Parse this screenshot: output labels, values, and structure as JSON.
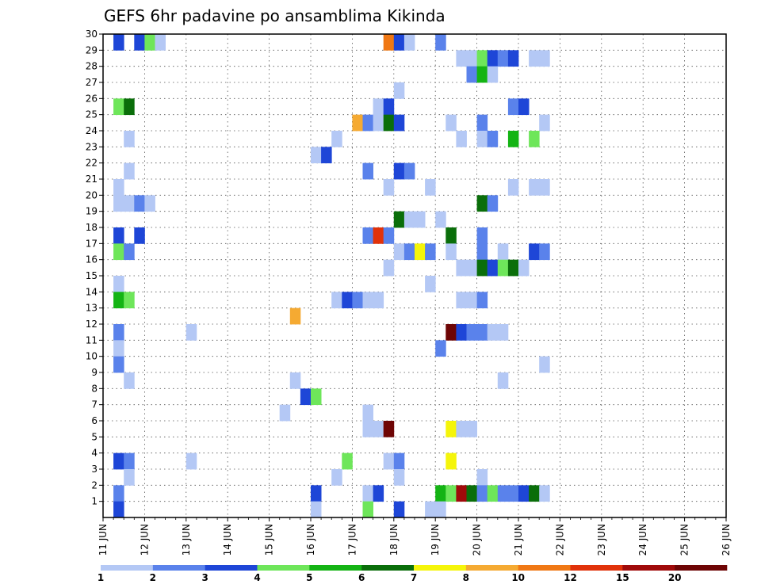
{
  "chart_data": {
    "type": "heatmap",
    "title": "GEFS 6hr padavine po ansamblima Kikinda",
    "xlabel": "",
    "ylabel": "",
    "x_ticks": [
      "11 JUN",
      "12 JUN",
      "13 JUN",
      "14 JUN",
      "15 JUN",
      "16 JUN",
      "17 JUN",
      "18 JUN",
      "19 JUN",
      "20 JUN",
      "21 JUN",
      "22 JUN",
      "23 JUN",
      "24 JUN",
      "25 JUN",
      "26 JUN"
    ],
    "xlim": [
      0,
      60
    ],
    "y_ticks": [
      1,
      2,
      3,
      4,
      5,
      6,
      7,
      8,
      9,
      10,
      11,
      12,
      13,
      14,
      15,
      16,
      17,
      18,
      19,
      20,
      21,
      22,
      23,
      24,
      25,
      26,
      27,
      28,
      29,
      30
    ],
    "ylim": [
      0,
      30
    ],
    "grid": true,
    "legend": {
      "placement": "bottom",
      "labels": [
        "1",
        "2",
        "3",
        "4",
        "5",
        "6",
        "7",
        "8",
        "10",
        "12",
        "15",
        "20"
      ],
      "colors": [
        "#b4c8f5",
        "#5a82eb",
        "#1e46d7",
        "#6ee65a",
        "#14b414",
        "#0a6e0a",
        "#f5f50a",
        "#f5aa32",
        "#f07814",
        "#e1320a",
        "#a00a0a",
        "#6e0505"
      ]
    },
    "cells": [
      {
        "x": 1,
        "y": 30,
        "level": 3
      },
      {
        "x": 3,
        "y": 30,
        "level": 3
      },
      {
        "x": 4,
        "y": 30,
        "level": 4
      },
      {
        "x": 5,
        "y": 30,
        "level": 1
      },
      {
        "x": 27,
        "y": 30,
        "level": 10
      },
      {
        "x": 28,
        "y": 30,
        "level": 3
      },
      {
        "x": 29,
        "y": 30,
        "level": 1
      },
      {
        "x": 32,
        "y": 30,
        "level": 2
      },
      {
        "x": 34,
        "y": 29,
        "level": 1
      },
      {
        "x": 35,
        "y": 29,
        "level": 1
      },
      {
        "x": 36,
        "y": 29,
        "level": 4
      },
      {
        "x": 37,
        "y": 29,
        "level": 3
      },
      {
        "x": 38,
        "y": 29,
        "level": 2
      },
      {
        "x": 39,
        "y": 29,
        "level": 3
      },
      {
        "x": 41,
        "y": 29,
        "level": 1
      },
      {
        "x": 42,
        "y": 29,
        "level": 1
      },
      {
        "x": 35,
        "y": 28,
        "level": 2
      },
      {
        "x": 36,
        "y": 28,
        "level": 5
      },
      {
        "x": 37,
        "y": 28,
        "level": 1
      },
      {
        "x": 28,
        "y": 27,
        "level": 1
      },
      {
        "x": 1,
        "y": 26,
        "level": 4
      },
      {
        "x": 2,
        "y": 26,
        "level": 6
      },
      {
        "x": 26,
        "y": 26,
        "level": 1
      },
      {
        "x": 27,
        "y": 26,
        "level": 3
      },
      {
        "x": 39,
        "y": 26,
        "level": 2
      },
      {
        "x": 40,
        "y": 26,
        "level": 3
      },
      {
        "x": 24,
        "y": 25,
        "level": 8
      },
      {
        "x": 25,
        "y": 25,
        "level": 2
      },
      {
        "x": 26,
        "y": 25,
        "level": 1
      },
      {
        "x": 27,
        "y": 25,
        "level": 6
      },
      {
        "x": 28,
        "y": 25,
        "level": 3
      },
      {
        "x": 33,
        "y": 25,
        "level": 1
      },
      {
        "x": 36,
        "y": 25,
        "level": 2
      },
      {
        "x": 42,
        "y": 25,
        "level": 1
      },
      {
        "x": 2,
        "y": 24,
        "level": 1
      },
      {
        "x": 22,
        "y": 24,
        "level": 1
      },
      {
        "x": 34,
        "y": 24,
        "level": 1
      },
      {
        "x": 36,
        "y": 24,
        "level": 1
      },
      {
        "x": 37,
        "y": 24,
        "level": 2
      },
      {
        "x": 39,
        "y": 24,
        "level": 5
      },
      {
        "x": 41,
        "y": 24,
        "level": 4
      },
      {
        "x": 20,
        "y": 23,
        "level": 1
      },
      {
        "x": 21,
        "y": 23,
        "level": 3
      },
      {
        "x": 2,
        "y": 22,
        "level": 1
      },
      {
        "x": 25,
        "y": 22,
        "level": 2
      },
      {
        "x": 28,
        "y": 22,
        "level": 3
      },
      {
        "x": 29,
        "y": 22,
        "level": 2
      },
      {
        "x": 1,
        "y": 21,
        "level": 1
      },
      {
        "x": 27,
        "y": 21,
        "level": 1
      },
      {
        "x": 31,
        "y": 21,
        "level": 1
      },
      {
        "x": 39,
        "y": 21,
        "level": 1
      },
      {
        "x": 41,
        "y": 21,
        "level": 1
      },
      {
        "x": 42,
        "y": 21,
        "level": 1
      },
      {
        "x": 1,
        "y": 20,
        "level": 1
      },
      {
        "x": 2,
        "y": 20,
        "level": 1
      },
      {
        "x": 3,
        "y": 20,
        "level": 2
      },
      {
        "x": 4,
        "y": 20,
        "level": 1
      },
      {
        "x": 36,
        "y": 20,
        "level": 6
      },
      {
        "x": 37,
        "y": 20,
        "level": 2
      },
      {
        "x": 28,
        "y": 19,
        "level": 6
      },
      {
        "x": 29,
        "y": 19,
        "level": 1
      },
      {
        "x": 30,
        "y": 19,
        "level": 1
      },
      {
        "x": 32,
        "y": 19,
        "level": 1
      },
      {
        "x": 1,
        "y": 18,
        "level": 3
      },
      {
        "x": 3,
        "y": 18,
        "level": 3
      },
      {
        "x": 25,
        "y": 18,
        "level": 2
      },
      {
        "x": 26,
        "y": 18,
        "level": 12
      },
      {
        "x": 27,
        "y": 18,
        "level": 2
      },
      {
        "x": 33,
        "y": 18,
        "level": 6
      },
      {
        "x": 36,
        "y": 18,
        "level": 2
      },
      {
        "x": 1,
        "y": 17,
        "level": 4
      },
      {
        "x": 2,
        "y": 17,
        "level": 2
      },
      {
        "x": 28,
        "y": 17,
        "level": 1
      },
      {
        "x": 29,
        "y": 17,
        "level": 2
      },
      {
        "x": 30,
        "y": 17,
        "level": 7
      },
      {
        "x": 31,
        "y": 17,
        "level": 2
      },
      {
        "x": 33,
        "y": 17,
        "level": 1
      },
      {
        "x": 36,
        "y": 17,
        "level": 2
      },
      {
        "x": 38,
        "y": 17,
        "level": 1
      },
      {
        "x": 41,
        "y": 17,
        "level": 3
      },
      {
        "x": 42,
        "y": 17,
        "level": 2
      },
      {
        "x": 27,
        "y": 16,
        "level": 1
      },
      {
        "x": 34,
        "y": 16,
        "level": 1
      },
      {
        "x": 35,
        "y": 16,
        "level": 1
      },
      {
        "x": 36,
        "y": 16,
        "level": 6
      },
      {
        "x": 37,
        "y": 16,
        "level": 3
      },
      {
        "x": 38,
        "y": 16,
        "level": 4
      },
      {
        "x": 39,
        "y": 16,
        "level": 6
      },
      {
        "x": 40,
        "y": 16,
        "level": 1
      },
      {
        "x": 1,
        "y": 15,
        "level": 1
      },
      {
        "x": 31,
        "y": 15,
        "level": 1
      },
      {
        "x": 1,
        "y": 14,
        "level": 5
      },
      {
        "x": 2,
        "y": 14,
        "level": 4
      },
      {
        "x": 22,
        "y": 14,
        "level": 1
      },
      {
        "x": 23,
        "y": 14,
        "level": 3
      },
      {
        "x": 24,
        "y": 14,
        "level": 2
      },
      {
        "x": 25,
        "y": 14,
        "level": 1
      },
      {
        "x": 26,
        "y": 14,
        "level": 1
      },
      {
        "x": 34,
        "y": 14,
        "level": 1
      },
      {
        "x": 35,
        "y": 14,
        "level": 1
      },
      {
        "x": 36,
        "y": 14,
        "level": 2
      },
      {
        "x": 18,
        "y": 13,
        "level": 8
      },
      {
        "x": 1,
        "y": 12,
        "level": 2
      },
      {
        "x": 8,
        "y": 12,
        "level": 1
      },
      {
        "x": 33,
        "y": 12,
        "level": 20
      },
      {
        "x": 34,
        "y": 12,
        "level": 3
      },
      {
        "x": 35,
        "y": 12,
        "level": 2
      },
      {
        "x": 36,
        "y": 12,
        "level": 2
      },
      {
        "x": 37,
        "y": 12,
        "level": 1
      },
      {
        "x": 38,
        "y": 12,
        "level": 1
      },
      {
        "x": 1,
        "y": 11,
        "level": 1
      },
      {
        "x": 32,
        "y": 11,
        "level": 2
      },
      {
        "x": 1,
        "y": 10,
        "level": 2
      },
      {
        "x": 42,
        "y": 10,
        "level": 1
      },
      {
        "x": 2,
        "y": 9,
        "level": 1
      },
      {
        "x": 18,
        "y": 9,
        "level": 1
      },
      {
        "x": 38,
        "y": 9,
        "level": 1
      },
      {
        "x": 19,
        "y": 8,
        "level": 3
      },
      {
        "x": 20,
        "y": 8,
        "level": 4
      },
      {
        "x": 17,
        "y": 7,
        "level": 1
      },
      {
        "x": 25,
        "y": 7,
        "level": 1
      },
      {
        "x": 25,
        "y": 6,
        "level": 1
      },
      {
        "x": 26,
        "y": 6,
        "level": 1
      },
      {
        "x": 27,
        "y": 6,
        "level": 20
      },
      {
        "x": 33,
        "y": 6,
        "level": 7
      },
      {
        "x": 34,
        "y": 6,
        "level": 1
      },
      {
        "x": 35,
        "y": 6,
        "level": 1
      },
      {
        "x": 1,
        "y": 4,
        "level": 3
      },
      {
        "x": 2,
        "y": 4,
        "level": 2
      },
      {
        "x": 8,
        "y": 4,
        "level": 1
      },
      {
        "x": 23,
        "y": 4,
        "level": 4
      },
      {
        "x": 27,
        "y": 4,
        "level": 1
      },
      {
        "x": 28,
        "y": 4,
        "level": 2
      },
      {
        "x": 33,
        "y": 4,
        "level": 7
      },
      {
        "x": 2,
        "y": 3,
        "level": 1
      },
      {
        "x": 22,
        "y": 3,
        "level": 1
      },
      {
        "x": 28,
        "y": 3,
        "level": 1
      },
      {
        "x": 36,
        "y": 3,
        "level": 1
      },
      {
        "x": 1,
        "y": 2,
        "level": 2
      },
      {
        "x": 20,
        "y": 2,
        "level": 3
      },
      {
        "x": 25,
        "y": 2,
        "level": 1
      },
      {
        "x": 26,
        "y": 2,
        "level": 3
      },
      {
        "x": 32,
        "y": 2,
        "level": 5
      },
      {
        "x": 33,
        "y": 2,
        "level": 4
      },
      {
        "x": 34,
        "y": 2,
        "level": 15
      },
      {
        "x": 35,
        "y": 2,
        "level": 6
      },
      {
        "x": 36,
        "y": 2,
        "level": 2
      },
      {
        "x": 37,
        "y": 2,
        "level": 4
      },
      {
        "x": 38,
        "y": 2,
        "level": 2
      },
      {
        "x": 39,
        "y": 2,
        "level": 2
      },
      {
        "x": 40,
        "y": 2,
        "level": 3
      },
      {
        "x": 41,
        "y": 2,
        "level": 6
      },
      {
        "x": 42,
        "y": 2,
        "level": 1
      },
      {
        "x": 1,
        "y": 1,
        "level": 3
      },
      {
        "x": 20,
        "y": 1,
        "level": 1
      },
      {
        "x": 25,
        "y": 1,
        "level": 4
      },
      {
        "x": 28,
        "y": 1,
        "level": 3
      },
      {
        "x": 31,
        "y": 1,
        "level": 1
      },
      {
        "x": 32,
        "y": 1,
        "level": 1
      }
    ]
  }
}
